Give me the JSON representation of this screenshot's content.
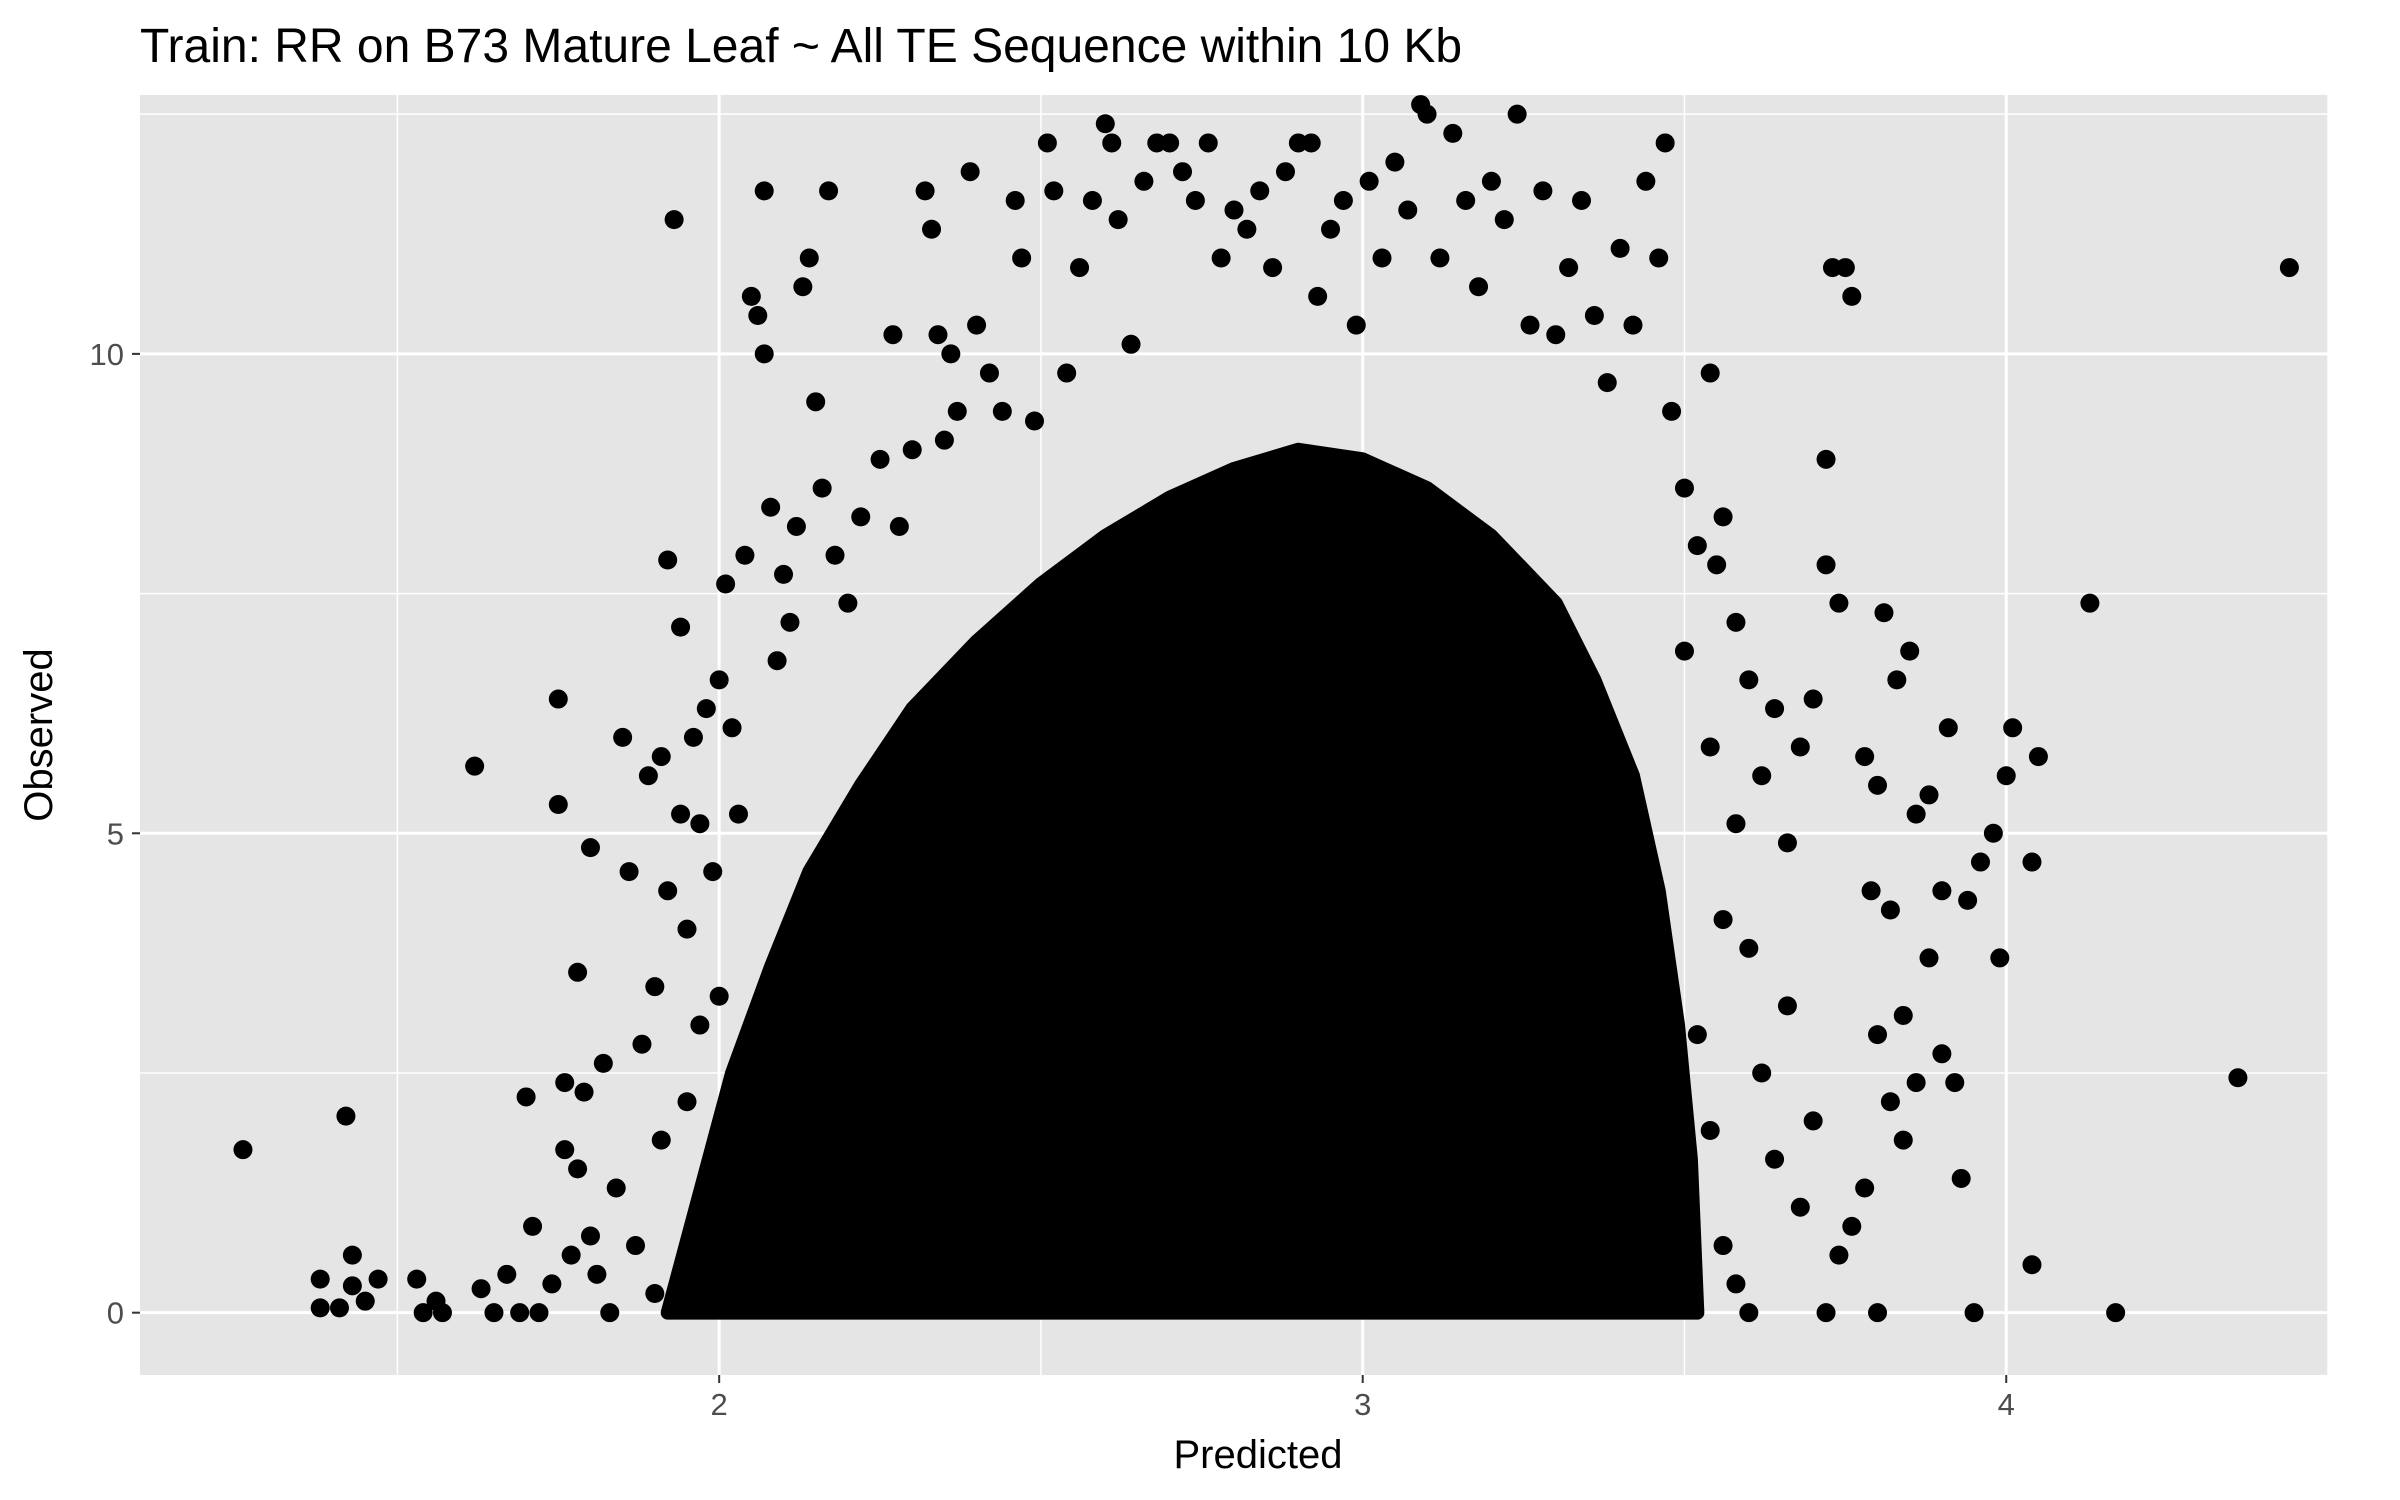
{
  "chart_data": {
    "type": "scatter",
    "title": "Train: RR on B73 Mature Leaf ~ All TE Sequence within 10 Kb",
    "xlabel": "Predicted",
    "ylabel": "Observed",
    "xlim": [
      1.1,
      4.5
    ],
    "ylim": [
      -0.65,
      12.7
    ],
    "xticks": [
      2,
      3,
      4
    ],
    "xtick_labels": [
      "2",
      "3",
      "4"
    ],
    "yticks": [
      0,
      5,
      10
    ],
    "ytick_labels": [
      "0",
      "5",
      "10"
    ],
    "grid": true,
    "legend": "none",
    "colors": {
      "panel_background": "#e5e5e5",
      "gridline": "#ffffff",
      "point": "#000000",
      "tick_label": "#4d4d4d"
    },
    "dense_region_outline": [
      [
        1.92,
        0
      ],
      [
        1.98,
        1.5
      ],
      [
        2.02,
        2.5
      ],
      [
        2.08,
        3.6
      ],
      [
        2.14,
        4.6
      ],
      [
        2.22,
        5.5
      ],
      [
        2.3,
        6.3
      ],
      [
        2.4,
        7.0
      ],
      [
        2.5,
        7.6
      ],
      [
        2.6,
        8.1
      ],
      [
        2.7,
        8.5
      ],
      [
        2.8,
        8.8
      ],
      [
        2.9,
        9.0
      ],
      [
        3.0,
        8.9
      ],
      [
        3.1,
        8.6
      ],
      [
        3.2,
        8.1
      ],
      [
        3.3,
        7.4
      ],
      [
        3.36,
        6.6
      ],
      [
        3.42,
        5.6
      ],
      [
        3.46,
        4.4
      ],
      [
        3.49,
        3.0
      ],
      [
        3.51,
        1.6
      ],
      [
        3.52,
        0
      ]
    ],
    "points": [
      [
        1.26,
        1.7
      ],
      [
        1.38,
        0.35
      ],
      [
        1.38,
        0.05
      ],
      [
        1.41,
        0.05
      ],
      [
        1.42,
        2.05
      ],
      [
        1.43,
        0.6
      ],
      [
        1.43,
        0.28
      ],
      [
        1.45,
        0.12
      ],
      [
        1.47,
        0.35
      ],
      [
        1.53,
        0.35
      ],
      [
        1.54,
        0.0
      ],
      [
        1.56,
        0.12
      ],
      [
        1.57,
        0.0
      ],
      [
        1.62,
        5.7
      ],
      [
        1.63,
        0.25
      ],
      [
        1.65,
        0.0
      ],
      [
        1.67,
        0.4
      ],
      [
        1.69,
        0.0
      ],
      [
        1.7,
        2.25
      ],
      [
        1.71,
        0.9
      ],
      [
        1.72,
        0.0
      ],
      [
        1.74,
        0.3
      ],
      [
        1.75,
        5.3
      ],
      [
        1.75,
        6.4
      ],
      [
        1.76,
        2.4
      ],
      [
        1.76,
        1.7
      ],
      [
        1.77,
        0.6
      ],
      [
        1.78,
        3.55
      ],
      [
        1.78,
        1.5
      ],
      [
        1.79,
        2.3
      ],
      [
        1.8,
        4.85
      ],
      [
        1.8,
        0.8
      ],
      [
        1.81,
        0.4
      ],
      [
        1.82,
        2.6
      ],
      [
        1.83,
        0.0
      ],
      [
        1.84,
        1.3
      ],
      [
        1.85,
        6.0
      ],
      [
        1.86,
        4.6
      ],
      [
        1.87,
        0.7
      ],
      [
        1.88,
        2.8
      ],
      [
        1.89,
        5.6
      ],
      [
        1.9,
        0.2
      ],
      [
        1.9,
        3.4
      ],
      [
        1.91,
        5.8
      ],
      [
        1.91,
        1.8
      ],
      [
        1.92,
        4.4
      ],
      [
        1.92,
        7.85
      ],
      [
        1.93,
        11.4
      ],
      [
        1.94,
        7.15
      ],
      [
        1.94,
        5.2
      ],
      [
        1.95,
        2.2
      ],
      [
        1.95,
        4.0
      ],
      [
        1.96,
        6.0
      ],
      [
        1.97,
        3.0
      ],
      [
        1.97,
        5.1
      ],
      [
        1.98,
        6.3
      ],
      [
        1.99,
        4.6
      ],
      [
        2.0,
        6.6
      ],
      [
        2.0,
        3.3
      ],
      [
        2.01,
        7.6
      ],
      [
        2.02,
        6.1
      ],
      [
        2.03,
        5.2
      ],
      [
        2.04,
        7.9
      ],
      [
        2.05,
        10.6
      ],
      [
        2.06,
        10.4
      ],
      [
        2.07,
        11.7
      ],
      [
        2.07,
        10.0
      ],
      [
        2.08,
        8.4
      ],
      [
        2.09,
        6.8
      ],
      [
        2.1,
        7.7
      ],
      [
        2.11,
        7.2
      ],
      [
        2.12,
        8.2
      ],
      [
        2.13,
        10.7
      ],
      [
        2.14,
        11.0
      ],
      [
        2.15,
        9.5
      ],
      [
        2.16,
        8.6
      ],
      [
        2.17,
        11.7
      ],
      [
        2.18,
        7.9
      ],
      [
        2.2,
        7.4
      ],
      [
        2.22,
        8.3
      ],
      [
        2.25,
        8.9
      ],
      [
        2.27,
        10.2
      ],
      [
        2.28,
        8.2
      ],
      [
        2.3,
        9.0
      ],
      [
        2.32,
        11.7
      ],
      [
        2.33,
        11.3
      ],
      [
        2.34,
        10.2
      ],
      [
        2.35,
        9.1
      ],
      [
        2.36,
        10.0
      ],
      [
        2.37,
        9.4
      ],
      [
        2.39,
        11.9
      ],
      [
        2.4,
        10.3
      ],
      [
        2.42,
        9.8
      ],
      [
        2.44,
        9.4
      ],
      [
        2.46,
        11.6
      ],
      [
        2.47,
        11.0
      ],
      [
        2.49,
        9.3
      ],
      [
        2.51,
        12.2
      ],
      [
        2.52,
        11.7
      ],
      [
        2.54,
        9.8
      ],
      [
        2.56,
        10.9
      ],
      [
        2.58,
        11.6
      ],
      [
        2.6,
        12.4
      ],
      [
        2.61,
        12.2
      ],
      [
        2.62,
        11.4
      ],
      [
        2.64,
        10.1
      ],
      [
        2.66,
        11.8
      ],
      [
        2.68,
        12.2
      ],
      [
        2.7,
        12.2
      ],
      [
        2.72,
        11.9
      ],
      [
        2.74,
        11.6
      ],
      [
        2.76,
        12.2
      ],
      [
        2.78,
        11.0
      ],
      [
        2.8,
        11.5
      ],
      [
        2.82,
        11.3
      ],
      [
        2.84,
        11.7
      ],
      [
        2.86,
        10.9
      ],
      [
        2.88,
        11.9
      ],
      [
        2.9,
        12.2
      ],
      [
        2.92,
        12.2
      ],
      [
        2.93,
        10.6
      ],
      [
        2.95,
        11.3
      ],
      [
        2.97,
        11.6
      ],
      [
        2.99,
        10.3
      ],
      [
        3.01,
        11.8
      ],
      [
        3.03,
        11.0
      ],
      [
        3.05,
        12.0
      ],
      [
        3.07,
        11.5
      ],
      [
        3.09,
        12.6
      ],
      [
        3.1,
        12.5
      ],
      [
        3.12,
        11.0
      ],
      [
        3.14,
        12.3
      ],
      [
        3.16,
        11.6
      ],
      [
        3.18,
        10.7
      ],
      [
        3.2,
        11.8
      ],
      [
        3.22,
        11.4
      ],
      [
        3.24,
        12.5
      ],
      [
        3.26,
        10.3
      ],
      [
        3.28,
        11.7
      ],
      [
        3.3,
        10.2
      ],
      [
        3.32,
        10.9
      ],
      [
        3.34,
        11.6
      ],
      [
        3.36,
        10.4
      ],
      [
        3.38,
        9.7
      ],
      [
        3.4,
        11.1
      ],
      [
        3.42,
        10.3
      ],
      [
        3.44,
        11.8
      ],
      [
        3.46,
        11.0
      ],
      [
        3.47,
        12.2
      ],
      [
        3.48,
        9.4
      ],
      [
        3.5,
        8.6
      ],
      [
        3.52,
        8.0
      ],
      [
        3.54,
        9.8
      ],
      [
        3.55,
        7.8
      ],
      [
        3.56,
        8.3
      ],
      [
        3.58,
        7.2
      ],
      [
        3.6,
        6.6
      ],
      [
        3.62,
        5.6
      ],
      [
        3.64,
        6.3
      ],
      [
        3.66,
        4.9
      ],
      [
        3.68,
        5.9
      ],
      [
        3.7,
        6.4
      ],
      [
        3.72,
        8.9
      ],
      [
        3.73,
        10.9
      ],
      [
        3.75,
        10.9
      ],
      [
        3.76,
        10.6
      ],
      [
        3.72,
        7.8
      ],
      [
        3.74,
        7.4
      ],
      [
        3.78,
        5.8
      ],
      [
        3.79,
        4.4
      ],
      [
        3.8,
        5.5
      ],
      [
        3.81,
        7.3
      ],
      [
        3.83,
        6.6
      ],
      [
        3.85,
        6.9
      ],
      [
        3.86,
        5.2
      ],
      [
        3.88,
        5.4
      ],
      [
        3.9,
        4.4
      ],
      [
        3.91,
        6.1
      ],
      [
        3.94,
        4.3
      ],
      [
        3.96,
        4.7
      ],
      [
        3.98,
        5.0
      ],
      [
        3.99,
        3.7
      ],
      [
        4.0,
        5.6
      ],
      [
        4.01,
        6.1
      ],
      [
        4.04,
        4.7
      ],
      [
        4.05,
        5.8
      ],
      [
        3.82,
        4.2
      ],
      [
        3.84,
        3.1
      ],
      [
        3.86,
        2.4
      ],
      [
        3.88,
        3.7
      ],
      [
        3.8,
        2.9
      ],
      [
        3.82,
        2.2
      ],
      [
        3.84,
        1.8
      ],
      [
        3.78,
        1.3
      ],
      [
        3.76,
        0.9
      ],
      [
        3.74,
        0.6
      ],
      [
        3.72,
        0.0
      ],
      [
        3.8,
        0.0
      ],
      [
        3.9,
        2.7
      ],
      [
        3.92,
        2.4
      ],
      [
        3.93,
        1.4
      ],
      [
        3.95,
        0.0
      ],
      [
        4.04,
        0.5
      ],
      [
        4.13,
        7.4
      ],
      [
        4.17,
        0.0
      ],
      [
        4.36,
        2.45
      ],
      [
        4.44,
        10.9
      ],
      [
        3.6,
        3.8
      ],
      [
        3.62,
        2.5
      ],
      [
        3.64,
        1.6
      ],
      [
        3.66,
        3.2
      ],
      [
        3.68,
        1.1
      ],
      [
        3.7,
        2.0
      ],
      [
        3.58,
        0.3
      ],
      [
        3.6,
        0.0
      ],
      [
        3.56,
        0.7
      ],
      [
        3.54,
        1.9
      ],
      [
        3.52,
        2.9
      ],
      [
        3.56,
        4.1
      ],
      [
        3.58,
        5.1
      ],
      [
        3.54,
        5.9
      ],
      [
        3.5,
        6.9
      ]
    ]
  }
}
